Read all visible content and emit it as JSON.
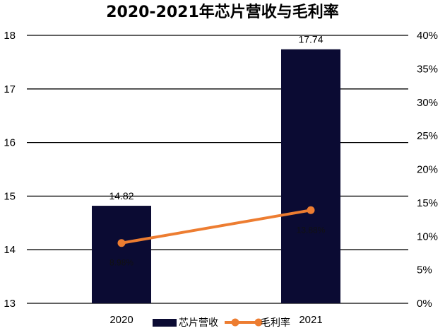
{
  "chart_data": {
    "type": "bar",
    "title": "2020-2021年芯片营收与毛利率",
    "categories": [
      "2020",
      "2021"
    ],
    "series": [
      {
        "name": "芯片营收",
        "type": "bar",
        "axis": "left",
        "values": [
          14.82,
          17.74
        ],
        "labels": [
          "14.82",
          "17.74"
        ],
        "color": "#0b0b33"
      },
      {
        "name": "毛利率",
        "type": "line",
        "axis": "right",
        "values": [
          9.0,
          13.9
        ],
        "labels": [
          "8.98%",
          "13.88%"
        ],
        "color": "#ed7d31"
      }
    ],
    "y_left": {
      "min": 13,
      "max": 18,
      "ticks": [
        "13",
        "14",
        "15",
        "16",
        "17",
        "18"
      ]
    },
    "y_right": {
      "min": 0,
      "max": 40,
      "ticks": [
        "0%",
        "5%",
        "10%",
        "15%",
        "20%",
        "25%",
        "30%",
        "35%",
        "40%"
      ]
    },
    "grid": true,
    "legend_position": "bottom"
  }
}
